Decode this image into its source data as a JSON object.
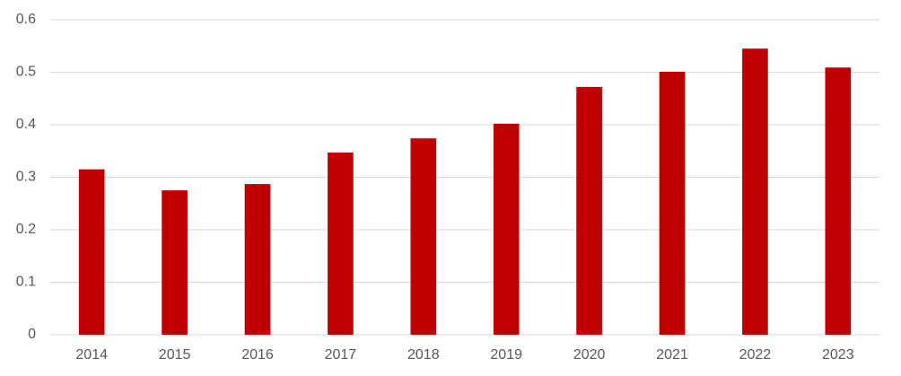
{
  "chart_data": {
    "type": "bar",
    "categories": [
      "2014",
      "2015",
      "2016",
      "2017",
      "2018",
      "2019",
      "2020",
      "2021",
      "2022",
      "2023"
    ],
    "values": [
      0.315,
      0.275,
      0.287,
      0.347,
      0.374,
      0.402,
      0.472,
      0.501,
      0.545,
      0.509
    ],
    "color": "#c00000",
    "ylim": [
      0,
      0.6
    ],
    "yticks": [
      0,
      0.1,
      0.2,
      0.3,
      0.4,
      0.5,
      0.6
    ],
    "grid": true
  }
}
